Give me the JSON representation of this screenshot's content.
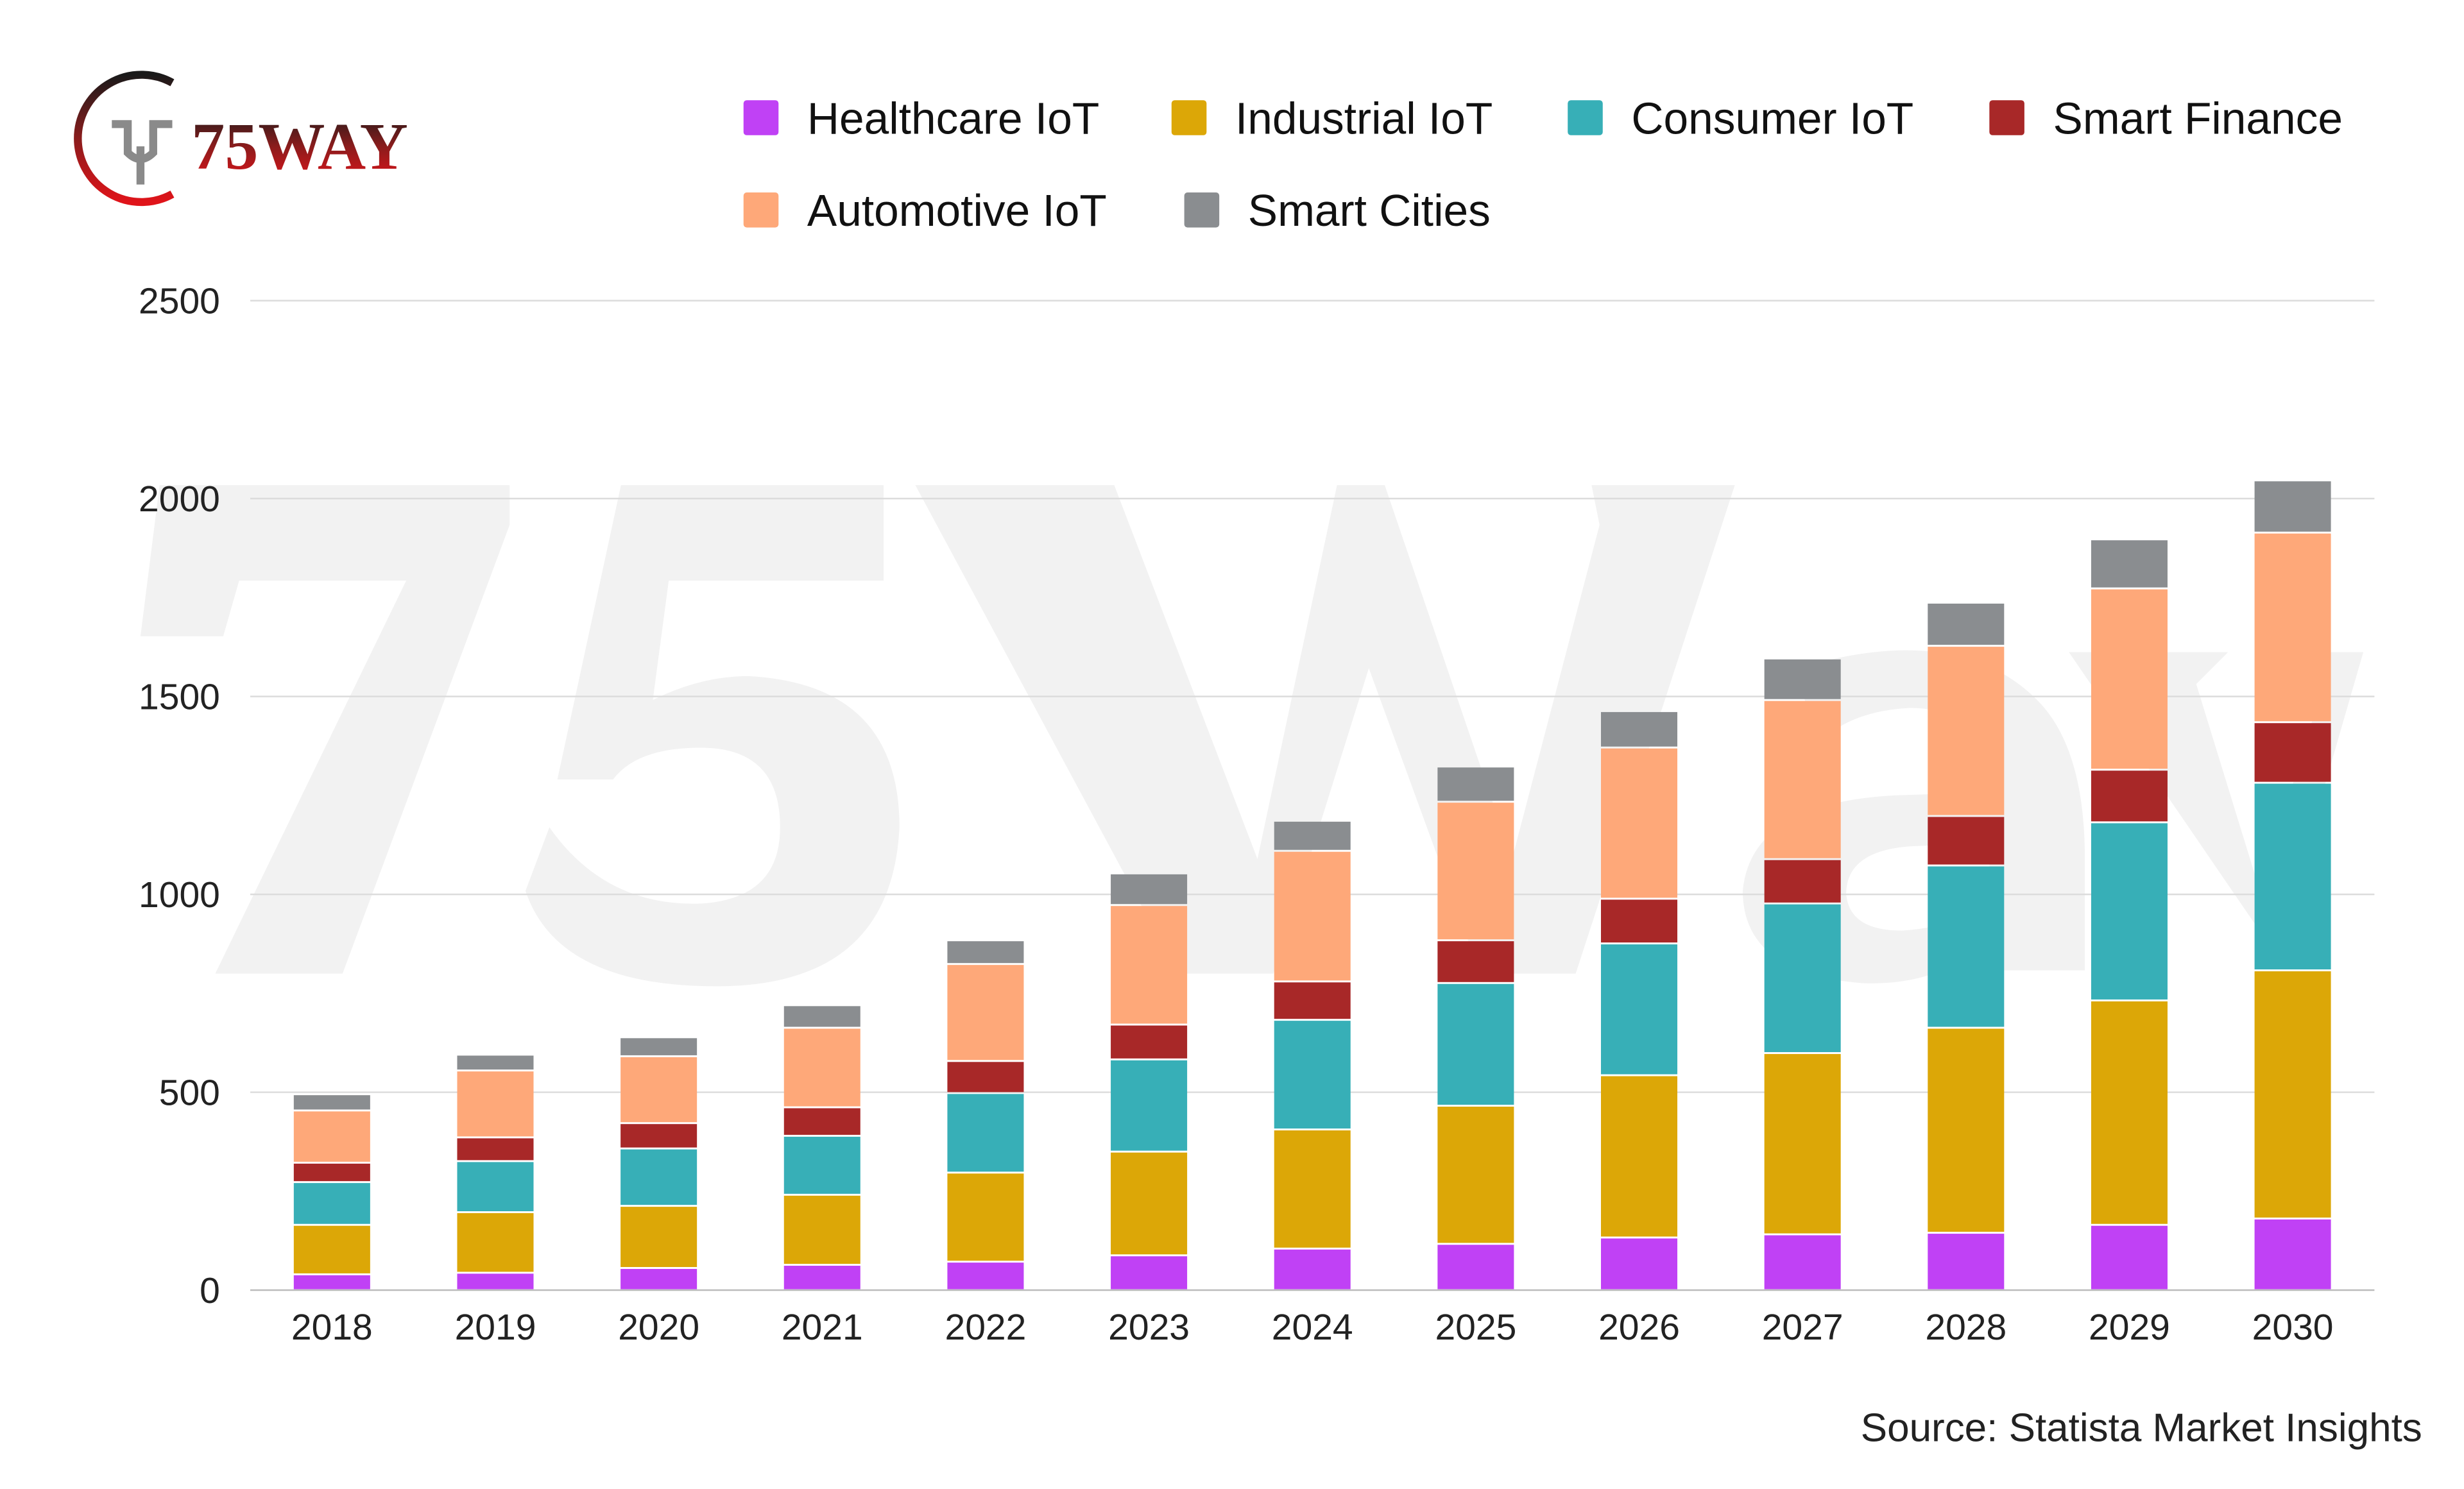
{
  "logo": {
    "text": "75WAY"
  },
  "watermark": "75Way",
  "source": "Source: Statista Market Insights",
  "colors": {
    "Healthcare IoT": "#c041f5",
    "Industrial IoT": "#dca707",
    "Consumer IoT": "#37afb7",
    "Smart Finance": "#a82828",
    "Automotive IoT": "#fea879",
    "Smart Cities": "#8a8d90"
  },
  "chart_data": {
    "type": "bar",
    "stacked": true,
    "title": "",
    "xlabel": "",
    "ylabel": "",
    "ylim": [
      0,
      2500
    ],
    "yticks": [
      "0",
      "500",
      "1000",
      "1500",
      "2000",
      "2500"
    ],
    "grid": true,
    "legend_position": "top",
    "categories": [
      "2018",
      "2019",
      "2020",
      "2021",
      "2022",
      "2023",
      "2024",
      "2025",
      "2026",
      "2027",
      "2028",
      "2029",
      "2030"
    ],
    "series": [
      {
        "name": "Healthcare IoT",
        "values": [
          40,
          44,
          56,
          64,
          72,
          88,
          105,
          117,
          133,
          141,
          145,
          165,
          181
        ]
      },
      {
        "name": "Industrial IoT",
        "values": [
          125,
          153,
          157,
          177,
          225,
          262,
          301,
          349,
          410,
          458,
          518,
          567,
          627
        ]
      },
      {
        "name": "Consumer IoT",
        "values": [
          108,
          129,
          145,
          149,
          201,
          233,
          277,
          310,
          333,
          378,
          410,
          450,
          474
        ]
      },
      {
        "name": "Smart Finance",
        "values": [
          49,
          60,
          64,
          72,
          81,
          88,
          97,
          108,
          113,
          112,
          125,
          133,
          153
        ]
      },
      {
        "name": "Automotive IoT",
        "values": [
          132,
          169,
          169,
          201,
          245,
          302,
          330,
          350,
          382,
          402,
          430,
          458,
          479
        ]
      },
      {
        "name": "Smart Cities",
        "values": [
          41,
          40,
          48,
          57,
          60,
          80,
          76,
          89,
          92,
          105,
          109,
          124,
          132
        ]
      }
    ]
  }
}
